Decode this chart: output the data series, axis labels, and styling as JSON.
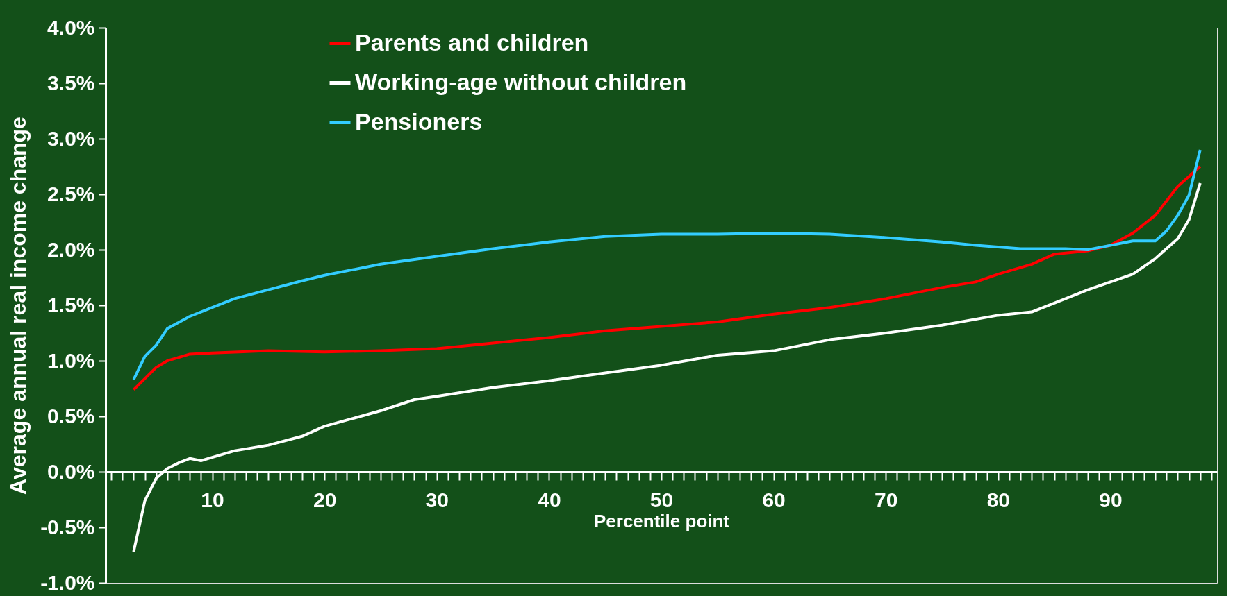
{
  "chart_data": {
    "type": "line",
    "xlabel": "Percentile point",
    "ylabel": "Average annual real income change",
    "xlim": [
      0.5,
      99.5
    ],
    "xticks": [
      {
        "value": 1,
        "label": null
      },
      {
        "value": 2,
        "label": null
      },
      {
        "value": 3,
        "label": null
      },
      {
        "value": 4,
        "label": null
      },
      {
        "value": 5,
        "label": null
      },
      {
        "value": 6,
        "label": null
      },
      {
        "value": 7,
        "label": null
      },
      {
        "value": 8,
        "label": null
      },
      {
        "value": 9,
        "label": null
      },
      10,
      {
        "value": 11,
        "label": null
      },
      {
        "value": 12,
        "label": null
      },
      {
        "value": 13,
        "label": null
      },
      {
        "value": 14,
        "label": null
      },
      {
        "value": 15,
        "label": null
      },
      {
        "value": 16,
        "label": null
      },
      {
        "value": 17,
        "label": null
      },
      {
        "value": 18,
        "label": null
      },
      {
        "value": 19,
        "label": null
      },
      20,
      {
        "value": 21,
        "label": null
      },
      {
        "value": 22,
        "label": null
      },
      {
        "value": 23,
        "label": null
      },
      {
        "value": 24,
        "label": null
      },
      {
        "value": 25,
        "label": null
      },
      {
        "value": 26,
        "label": null
      },
      {
        "value": 27,
        "label": null
      },
      {
        "value": 28,
        "label": null
      },
      {
        "value": 29,
        "label": null
      },
      30,
      {
        "value": 31,
        "label": null
      },
      {
        "value": 32,
        "label": null
      },
      {
        "value": 33,
        "label": null
      },
      {
        "value": 34,
        "label": null
      },
      {
        "value": 35,
        "label": null
      },
      {
        "value": 36,
        "label": null
      },
      {
        "value": 37,
        "label": null
      },
      {
        "value": 38,
        "label": null
      },
      {
        "value": 39,
        "label": null
      },
      40,
      {
        "value": 41,
        "label": null
      },
      {
        "value": 42,
        "label": null
      },
      {
        "value": 43,
        "label": null
      },
      {
        "value": 44,
        "label": null
      },
      {
        "value": 45,
        "label": null
      },
      {
        "value": 46,
        "label": null
      },
      {
        "value": 47,
        "label": null
      },
      {
        "value": 48,
        "label": null
      },
      {
        "value": 49,
        "label": null
      },
      50,
      {
        "value": 51,
        "label": null
      },
      {
        "value": 52,
        "label": null
      },
      {
        "value": 53,
        "label": null
      },
      {
        "value": 54,
        "label": null
      },
      {
        "value": 55,
        "label": null
      },
      {
        "value": 56,
        "label": null
      },
      {
        "value": 57,
        "label": null
      },
      {
        "value": 58,
        "label": null
      },
      {
        "value": 59,
        "label": null
      },
      60,
      {
        "value": 61,
        "label": null
      },
      {
        "value": 62,
        "label": null
      },
      {
        "value": 63,
        "label": null
      },
      {
        "value": 64,
        "label": null
      },
      {
        "value": 65,
        "label": null
      },
      {
        "value": 66,
        "label": null
      },
      {
        "value": 67,
        "label": null
      },
      {
        "value": 68,
        "label": null
      },
      {
        "value": 69,
        "label": null
      },
      70,
      {
        "value": 71,
        "label": null
      },
      {
        "value": 72,
        "label": null
      },
      {
        "value": 73,
        "label": null
      },
      {
        "value": 74,
        "label": null
      },
      {
        "value": 75,
        "label": null
      },
      {
        "value": 76,
        "label": null
      },
      {
        "value": 77,
        "label": null
      },
      {
        "value": 78,
        "label": null
      },
      {
        "value": 79,
        "label": null
      },
      80,
      {
        "value": 81,
        "label": null
      },
      {
        "value": 82,
        "label": null
      },
      {
        "value": 83,
        "label": null
      },
      {
        "value": 84,
        "label": null
      },
      {
        "value": 85,
        "label": null
      },
      {
        "value": 86,
        "label": null
      },
      {
        "value": 87,
        "label": null
      },
      {
        "value": 88,
        "label": null
      },
      {
        "value": 89,
        "label": null
      },
      90,
      {
        "value": 91,
        "label": null
      },
      {
        "value": 92,
        "label": null
      },
      {
        "value": 93,
        "label": null
      },
      {
        "value": 94,
        "label": null
      },
      {
        "value": 95,
        "label": null
      },
      {
        "value": 96,
        "label": null
      },
      {
        "value": 97,
        "label": null
      },
      {
        "value": 98,
        "label": null
      },
      {
        "value": 99,
        "label": null
      }
    ],
    "ylim": [
      -1.0,
      4.0
    ],
    "yticks": [
      {
        "value": -1.0,
        "label": "-1.0%"
      },
      {
        "value": -0.5,
        "label": "-0.5%"
      },
      {
        "value": 0,
        "label": "0.0%"
      },
      {
        "value": 0.5,
        "label": "0.5%"
      },
      {
        "value": 1.0,
        "label": "1.0%"
      },
      {
        "value": 1.5,
        "label": "1.5%"
      },
      {
        "value": 2.0,
        "label": "2.0%"
      },
      {
        "value": 2.5,
        "label": "2.5%"
      },
      {
        "value": 3.0,
        "label": "3.0%"
      },
      {
        "value": 3.5,
        "label": "3.5%"
      },
      {
        "value": 4.0,
        "label": "4.0%"
      }
    ],
    "grid": false,
    "legend": "top",
    "marker": "none",
    "line_style": "solid",
    "series": [
      {
        "name": "Parents and children",
        "color": "#ff0000",
        "x": [
          3,
          4,
          5,
          6,
          8,
          10,
          15,
          20,
          25,
          30,
          35,
          40,
          45,
          50,
          55,
          60,
          65,
          70,
          75,
          78,
          80,
          83,
          85,
          88,
          90,
          92,
          94,
          96,
          98
        ],
        "values": [
          0.74,
          0.84,
          0.94,
          1.0,
          1.06,
          1.07,
          1.09,
          1.08,
          1.09,
          1.11,
          1.16,
          1.21,
          1.27,
          1.31,
          1.35,
          1.42,
          1.48,
          1.56,
          1.66,
          1.71,
          1.78,
          1.87,
          1.96,
          1.99,
          2.04,
          2.15,
          2.31,
          2.57,
          2.75
        ]
      },
      {
        "name": "Working-age without children",
        "color": "#ffffff",
        "x": [
          3,
          4,
          5,
          6,
          7,
          8,
          9,
          10,
          12,
          15,
          18,
          20,
          25,
          28,
          30,
          35,
          40,
          45,
          50,
          55,
          60,
          65,
          70,
          75,
          80,
          83,
          85,
          88,
          90,
          92,
          94,
          96,
          97,
          98
        ],
        "values": [
          -0.72,
          -0.26,
          -0.06,
          0.03,
          0.08,
          0.12,
          0.1,
          0.13,
          0.19,
          0.24,
          0.32,
          0.41,
          0.55,
          0.65,
          0.68,
          0.76,
          0.82,
          0.89,
          0.96,
          1.05,
          1.09,
          1.19,
          1.25,
          1.32,
          1.41,
          1.44,
          1.52,
          1.64,
          1.71,
          1.78,
          1.92,
          2.1,
          2.27,
          2.6
        ]
      },
      {
        "name": "Pensioners",
        "color": "#33ccff",
        "x": [
          3,
          4,
          5,
          6,
          8,
          10,
          12,
          15,
          18,
          20,
          25,
          30,
          35,
          40,
          45,
          50,
          55,
          60,
          65,
          70,
          75,
          78,
          82,
          86,
          88,
          90,
          92,
          94,
          95,
          96,
          97,
          98
        ],
        "values": [
          0.83,
          1.04,
          1.14,
          1.29,
          1.4,
          1.48,
          1.56,
          1.64,
          1.72,
          1.77,
          1.87,
          1.94,
          2.01,
          2.07,
          2.12,
          2.14,
          2.14,
          2.15,
          2.14,
          2.11,
          2.07,
          2.04,
          2.01,
          2.01,
          2.0,
          2.04,
          2.08,
          2.08,
          2.17,
          2.31,
          2.49,
          2.9
        ]
      }
    ]
  }
}
